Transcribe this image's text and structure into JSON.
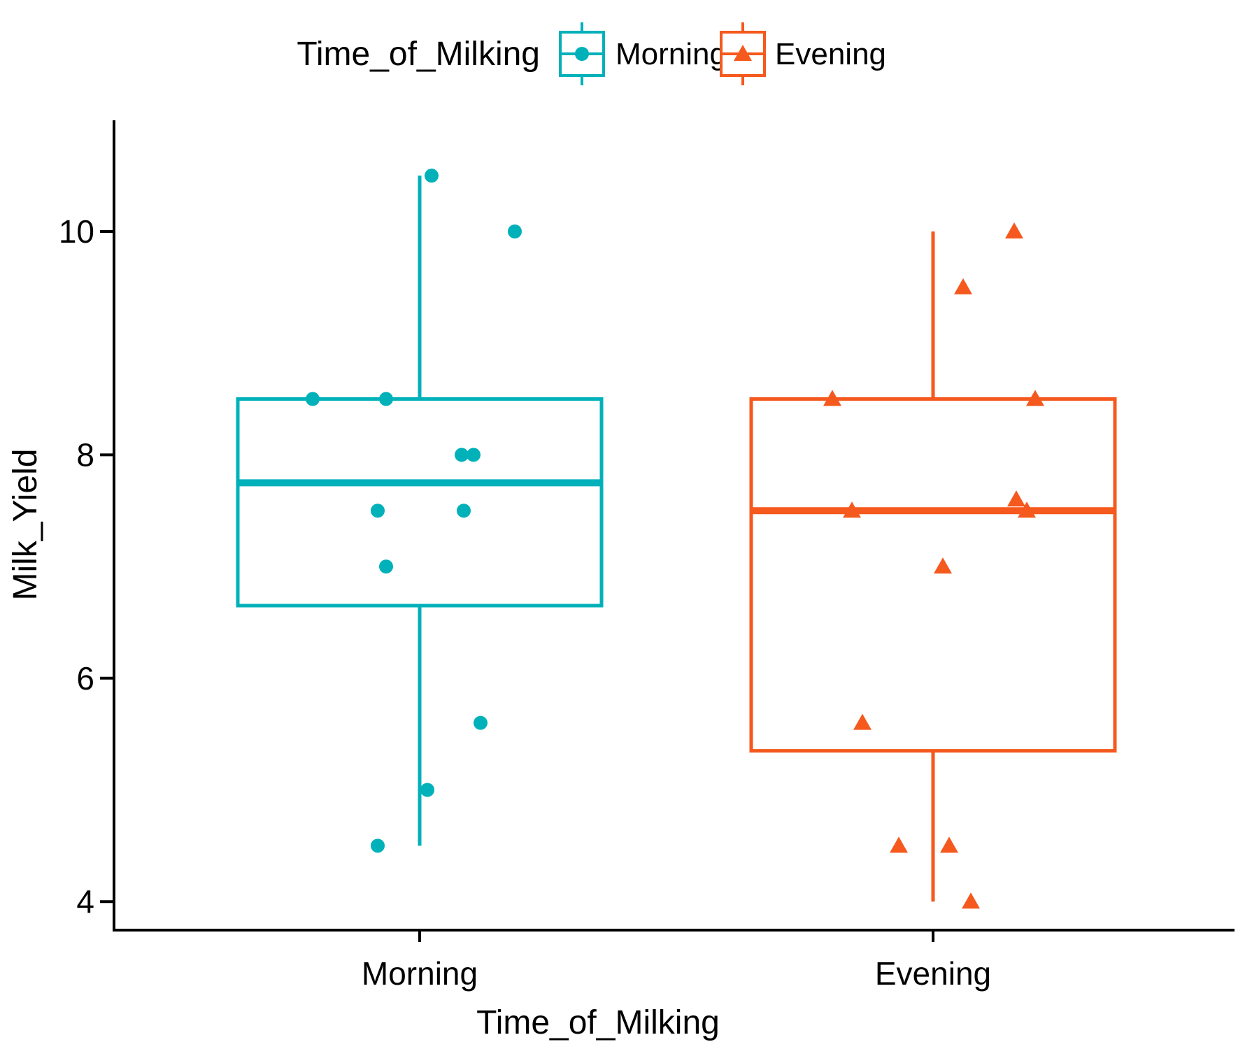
{
  "legend": {
    "title": "Time_of_Milking",
    "items": [
      {
        "label": "Morning",
        "color": "#00B1BA",
        "marker": "circle"
      },
      {
        "label": "Evening",
        "color": "#F5591D",
        "marker": "triangle"
      }
    ]
  },
  "axes": {
    "x": {
      "title": "Time_of_Milking",
      "categories": [
        "Morning",
        "Evening"
      ]
    },
    "y": {
      "title": "Milk_Yield",
      "tick_labels": [
        "4",
        "6",
        "8",
        "10"
      ],
      "tick_values": [
        4,
        6,
        8,
        10
      ]
    }
  },
  "chart_data": {
    "type": "boxplot",
    "overlay": "jittered-points",
    "title": "",
    "xlabel": "Time_of_Milking",
    "ylabel": "Milk_Yield",
    "x_categories": [
      "Morning",
      "Evening"
    ],
    "ylim": [
      3.5,
      11
    ],
    "grid": false,
    "legend_position": "top",
    "groups": [
      {
        "name": "Morning",
        "color": "#00B1BA",
        "marker": "circle",
        "box": {
          "whisker_min": 4.5,
          "q1": 6.65,
          "median": 7.75,
          "q3": 8.5,
          "whisker_max": 10.5
        },
        "points": [
          {
            "y": 10.5,
            "dx": 17
          },
          {
            "y": 10.0,
            "dx": 136
          },
          {
            "y": 8.5,
            "dx": -153
          },
          {
            "y": 8.5,
            "dx": -48
          },
          {
            "y": 8.0,
            "dx": 60
          },
          {
            "y": 8.0,
            "dx": 77
          },
          {
            "y": 7.5,
            "dx": -60
          },
          {
            "y": 7.5,
            "dx": 63
          },
          {
            "y": 7.0,
            "dx": -48
          },
          {
            "y": 5.6,
            "dx": 87
          },
          {
            "y": 5.0,
            "dx": 11
          },
          {
            "y": 4.5,
            "dx": -60
          }
        ]
      },
      {
        "name": "Evening",
        "color": "#F5591D",
        "marker": "triangle",
        "box": {
          "whisker_min": 4.0,
          "q1": 5.35,
          "median": 7.5,
          "q3": 8.5,
          "whisker_max": 10.0
        },
        "points": [
          {
            "y": 10.0,
            "dx": 116
          },
          {
            "y": 9.5,
            "dx": 43
          },
          {
            "y": 8.5,
            "dx": -144
          },
          {
            "y": 8.5,
            "dx": 146
          },
          {
            "y": 7.5,
            "dx": -116
          },
          {
            "y": 7.6,
            "dx": 119
          },
          {
            "y": 7.5,
            "dx": 134
          },
          {
            "y": 7.0,
            "dx": 14
          },
          {
            "y": 5.6,
            "dx": -101
          },
          {
            "y": 4.5,
            "dx": -49
          },
          {
            "y": 4.5,
            "dx": 23
          },
          {
            "y": 4.0,
            "dx": 54
          }
        ]
      }
    ]
  }
}
